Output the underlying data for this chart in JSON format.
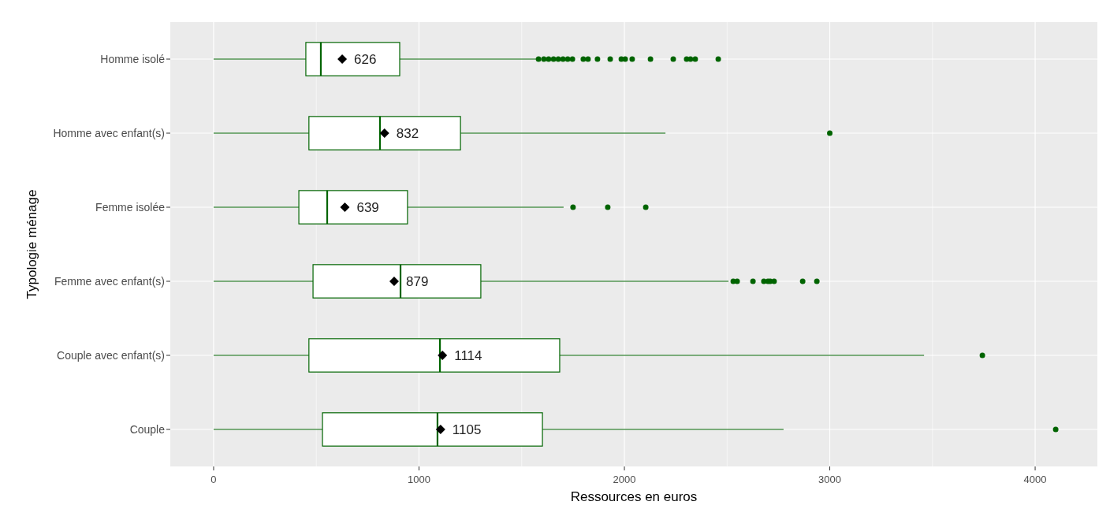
{
  "chart_data": {
    "type": "box",
    "orientation": "horizontal",
    "xlabel": "Ressources en euros",
    "ylabel": "Typologie ménage",
    "categories": [
      "Homme isolé",
      "Homme avec enfant(s)",
      "Femme isolée",
      "Femme avec enfant(s)",
      "Couple avec enfant(s)",
      "Couple"
    ],
    "color": "#006400",
    "grid": true,
    "annotations": [
      "626",
      "832",
      "639",
      "879",
      "1114",
      "1105"
    ],
    "xlim": [
      -211,
      4303
    ],
    "xticks": [
      0,
      1000,
      2000,
      3000,
      4000
    ],
    "boxes": [
      {
        "low": 0,
        "q1": 449,
        "median": 522,
        "q3": 906,
        "high": 1570,
        "mean": 626,
        "outliers": [
          1582,
          1608,
          1631,
          1655,
          1678,
          1701,
          1724,
          1747,
          1800,
          1823,
          1869,
          1931,
          1985,
          2004,
          2038,
          2127,
          2238,
          2303,
          2322,
          2345,
          2457
        ]
      },
      {
        "low": 0,
        "q1": 464,
        "median": 810,
        "q3": 1202,
        "high": 2200,
        "mean": 832,
        "outliers": [
          3000
        ]
      },
      {
        "low": 0,
        "q1": 415,
        "median": 553,
        "q3": 944,
        "high": 1704,
        "mean": 639,
        "outliers": [
          1750,
          1919,
          2104
        ]
      },
      {
        "low": 0,
        "q1": 484,
        "median": 910,
        "q3": 1301,
        "high": 2507,
        "mean": 879,
        "outliers": [
          2530,
          2549,
          2626,
          2679,
          2699,
          2710,
          2729,
          2868,
          2937
        ]
      },
      {
        "low": 0,
        "q1": 464,
        "median": 1102,
        "q3": 1685,
        "high": 3459,
        "mean": 1114,
        "outliers": [
          3743
        ]
      },
      {
        "low": 0,
        "q1": 530,
        "median": 1090,
        "q3": 1601,
        "high": 2775,
        "mean": 1105,
        "outliers": [
          4100
        ]
      }
    ]
  }
}
